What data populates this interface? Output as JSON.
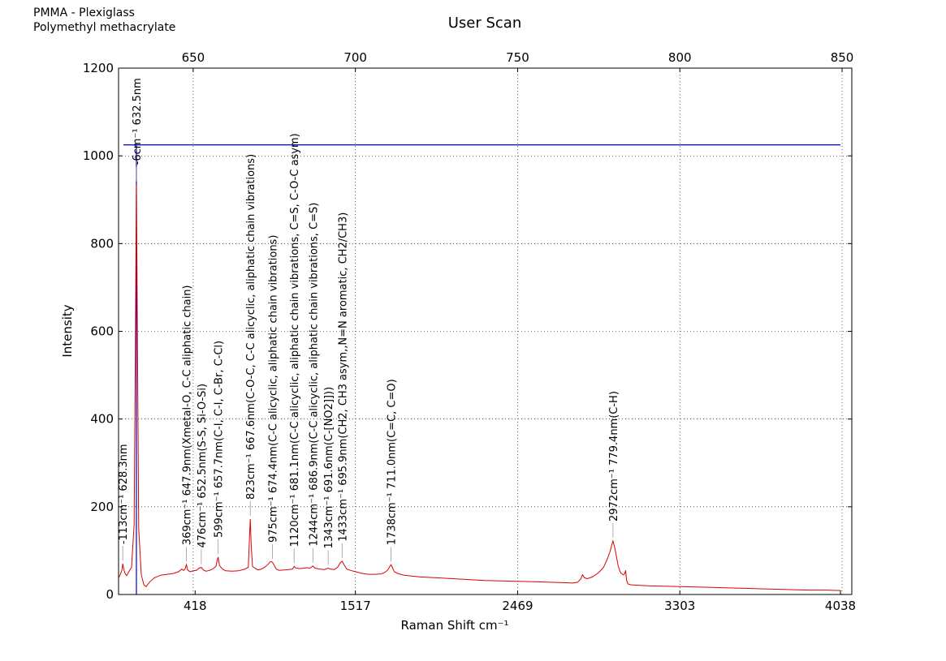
{
  "header_notes": [
    "PMMA - Plexiglass",
    "Polymethyl methacrylate"
  ],
  "chart_data": {
    "type": "line",
    "title": "User Scan",
    "xlabel": "Raman Shift cm⁻¹",
    "ylabel": "Intensity",
    "xlim_nm": [
      627,
      853
    ],
    "ylim": [
      0,
      1200
    ],
    "grid": true,
    "y_ticks": [
      0,
      200,
      400,
      600,
      800,
      1000,
      1200
    ],
    "top_ticks": [
      650,
      700,
      750,
      800,
      850
    ],
    "bottom_ticks": [
      {
        "label": "418",
        "nm": 650.6
      },
      {
        "label": "1517",
        "nm": 700
      },
      {
        "label": "2469",
        "nm": 750
      },
      {
        "label": "3303",
        "nm": 800
      },
      {
        "label": "4038",
        "nm": 849.5
      }
    ],
    "laser_marker": {
      "nm": 632.5,
      "level": 1025,
      "color": "#0000cc"
    },
    "series": [
      {
        "color": "#dd0000",
        "points": [
          [
            627,
            38
          ],
          [
            627.5,
            45
          ],
          [
            628,
            55
          ],
          [
            628.3,
            70
          ],
          [
            628.6,
            58
          ],
          [
            629,
            48
          ],
          [
            629.5,
            43
          ],
          [
            630,
            50
          ],
          [
            631,
            62
          ],
          [
            631.8,
            160
          ],
          [
            632.2,
            600
          ],
          [
            632.5,
            935
          ],
          [
            632.8,
            600
          ],
          [
            633.2,
            150
          ],
          [
            634,
            45
          ],
          [
            634.8,
            22
          ],
          [
            635.5,
            18
          ],
          [
            636.5,
            28
          ],
          [
            638,
            38
          ],
          [
            640,
            44
          ],
          [
            642,
            46
          ],
          [
            644,
            48
          ],
          [
            645.5,
            52
          ],
          [
            646.5,
            58
          ],
          [
            647,
            55
          ],
          [
            647.5,
            58
          ],
          [
            647.9,
            68
          ],
          [
            648.3,
            56
          ],
          [
            649,
            52
          ],
          [
            650,
            54
          ],
          [
            651,
            55
          ],
          [
            651.8,
            60
          ],
          [
            652.5,
            62
          ],
          [
            653.1,
            56
          ],
          [
            654,
            53
          ],
          [
            655,
            55
          ],
          [
            656,
            58
          ],
          [
            657,
            64
          ],
          [
            657.4,
            78
          ],
          [
            657.7,
            85
          ],
          [
            658.1,
            66
          ],
          [
            659,
            58
          ],
          [
            660,
            54
          ],
          [
            662,
            53
          ],
          [
            664,
            54
          ],
          [
            666,
            58
          ],
          [
            667,
            62
          ],
          [
            667.3,
            120
          ],
          [
            667.6,
            172
          ],
          [
            667.9,
            110
          ],
          [
            668.3,
            64
          ],
          [
            669,
            60
          ],
          [
            670,
            56
          ],
          [
            671,
            58
          ],
          [
            672,
            62
          ],
          [
            673,
            68
          ],
          [
            673.8,
            75
          ],
          [
            674.4,
            74
          ],
          [
            675,
            66
          ],
          [
            675.6,
            58
          ],
          [
            676.5,
            55
          ],
          [
            678,
            56
          ],
          [
            679.5,
            57
          ],
          [
            680.6,
            58
          ],
          [
            681.1,
            64
          ],
          [
            681.7,
            60
          ],
          [
            683,
            59
          ],
          [
            684,
            60
          ],
          [
            685,
            61
          ],
          [
            686,
            60
          ],
          [
            686.9,
            65
          ],
          [
            687.5,
            60
          ],
          [
            689,
            58
          ],
          [
            690.5,
            57
          ],
          [
            691.6,
            60
          ],
          [
            692.3,
            58
          ],
          [
            693.5,
            57
          ],
          [
            694.5,
            62
          ],
          [
            695.3,
            72
          ],
          [
            695.9,
            76
          ],
          [
            696.5,
            68
          ],
          [
            697.3,
            58
          ],
          [
            698.5,
            55
          ],
          [
            700,
            52
          ],
          [
            702,
            48
          ],
          [
            704,
            46
          ],
          [
            706,
            46
          ],
          [
            708,
            47
          ],
          [
            709,
            50
          ],
          [
            710,
            56
          ],
          [
            710.6,
            64
          ],
          [
            711,
            68
          ],
          [
            711.5,
            60
          ],
          [
            712,
            52
          ],
          [
            713,
            48
          ],
          [
            715,
            44
          ],
          [
            720,
            40
          ],
          [
            725,
            38
          ],
          [
            730,
            36
          ],
          [
            735,
            34
          ],
          [
            740,
            32
          ],
          [
            745,
            31
          ],
          [
            750,
            30
          ],
          [
            755,
            29
          ],
          [
            760,
            28
          ],
          [
            764,
            27
          ],
          [
            767,
            26
          ],
          [
            768.5,
            28
          ],
          [
            769.5,
            36
          ],
          [
            770,
            45
          ],
          [
            770.6,
            38
          ],
          [
            771.5,
            36
          ],
          [
            773,
            40
          ],
          [
            775,
            50
          ],
          [
            776.5,
            62
          ],
          [
            777.5,
            78
          ],
          [
            778.5,
            98
          ],
          [
            779.1,
            115
          ],
          [
            779.4,
            122
          ],
          [
            779.9,
            108
          ],
          [
            780.5,
            85
          ],
          [
            781,
            65
          ],
          [
            781.7,
            50
          ],
          [
            782.5,
            45
          ],
          [
            783,
            47
          ],
          [
            783.3,
            55
          ],
          [
            783.6,
            32
          ],
          [
            784,
            24
          ],
          [
            785,
            22
          ],
          [
            790,
            20
          ],
          [
            795,
            19
          ],
          [
            800,
            18
          ],
          [
            805,
            17
          ],
          [
            810,
            16
          ],
          [
            815,
            15
          ],
          [
            820,
            14
          ],
          [
            825,
            13
          ],
          [
            830,
            12
          ],
          [
            835,
            11
          ],
          [
            840,
            10
          ],
          [
            845,
            10
          ],
          [
            849.5,
            9
          ]
        ]
      }
    ],
    "peak_labels": [
      {
        "cm": "-113cm⁻¹",
        "desc": "628.3nm",
        "nm": 628.3,
        "y": 70
      },
      {
        "cm": "-6cm⁻¹",
        "desc": "632.5nm",
        "nm": 632.5,
        "y": 935
      },
      {
        "cm": "369cm⁻¹",
        "desc": "647.9nm(Xmetal-O, C-C aliphatic chain)",
        "nm": 647.9,
        "y": 68
      },
      {
        "cm": "476cm⁻¹",
        "desc": "652.5nm(S-S, Si-O-Si)",
        "nm": 652.5,
        "y": 62
      },
      {
        "cm": "599cm⁻¹",
        "desc": "657.7nm(C-I, C-I, C-Br, C-Cl)",
        "nm": 657.7,
        "y": 85
      },
      {
        "cm": "823cm⁻¹",
        "desc": "667.6nm(C-O-C, C-C alicyclic, aliphatic chain vibrations)",
        "nm": 667.6,
        "y": 172
      },
      {
        "cm": "975cm⁻¹",
        "desc": "674.4nm(C-C alicyclic, aliphatic chain vibrations)",
        "nm": 674.4,
        "y": 74
      },
      {
        "cm": "1120cm⁻¹",
        "desc": "681.1nm(C-C alicyclic, aliphatic chain vibrations, C=S, C-O-C asym)",
        "nm": 681.1,
        "y": 64
      },
      {
        "cm": "1244cm⁻¹",
        "desc": "686.9nm(C-C alicyclic, aliphatic chain vibrations, C=S)",
        "nm": 686.9,
        "y": 65
      },
      {
        "cm": "1343cm⁻¹",
        "desc": "691.6nm(C-[NO2]]))",
        "nm": 691.6,
        "y": 60
      },
      {
        "cm": "1433cm⁻¹",
        "desc": "695.9nm(CH2, CH3 asym,,N=N aromatic, CH2/CH3)",
        "nm": 695.9,
        "y": 76
      },
      {
        "cm": "1738cm⁻¹",
        "desc": "711.0nm(C=C, C=O)",
        "nm": 711.0,
        "y": 68
      },
      {
        "cm": "2972cm⁻¹",
        "desc": "779.4nm(C-H)",
        "nm": 779.4,
        "y": 122
      }
    ]
  }
}
